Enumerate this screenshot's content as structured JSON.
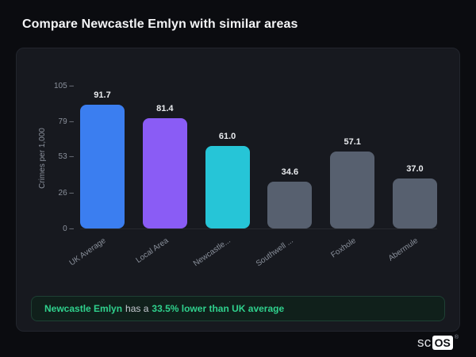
{
  "page": {
    "title": "Compare Newcastle Emlyn with similar areas"
  },
  "colors": {
    "background": "#0b0c10",
    "card": "#17191f",
    "card_border": "#22252d",
    "text_primary": "#f3f4f6",
    "text_muted": "#8a909b",
    "value_label": "#e9ebee",
    "accent_green": "#2fd18d",
    "note_bg": "#10201b",
    "note_border": "#1e4034",
    "note_text": "#c6cbd2"
  },
  "chart_data": {
    "type": "bar",
    "title": "Compare Newcastle Emlyn with similar areas",
    "categories": [
      "UK Average",
      "Local Area",
      "Newcastle...",
      "Southwell ...",
      "Foxhole",
      "Abermule"
    ],
    "values": [
      91.7,
      81.4,
      61.0,
      34.6,
      57.1,
      37.0
    ],
    "value_labels": [
      "91.7",
      "81.4",
      "61.0",
      "34.6",
      "57.1",
      "37.0"
    ],
    "bar_colors": [
      "#3b7ef0",
      "#8a5cf5",
      "#26c5d7",
      "#57606f",
      "#57606f",
      "#57606f"
    ],
    "xlabel": "",
    "ylabel": "Crimes per 1,000",
    "yticks": [
      0,
      26,
      53,
      79,
      105
    ],
    "ylim": [
      0,
      105
    ],
    "grid": false,
    "legend": false
  },
  "note": {
    "area": "Newcastle Emlyn",
    "middle": "has a",
    "stat": "33.5% lower than UK average"
  },
  "brand": {
    "prefix": "sc",
    "box": "OS",
    "registered": "®"
  }
}
